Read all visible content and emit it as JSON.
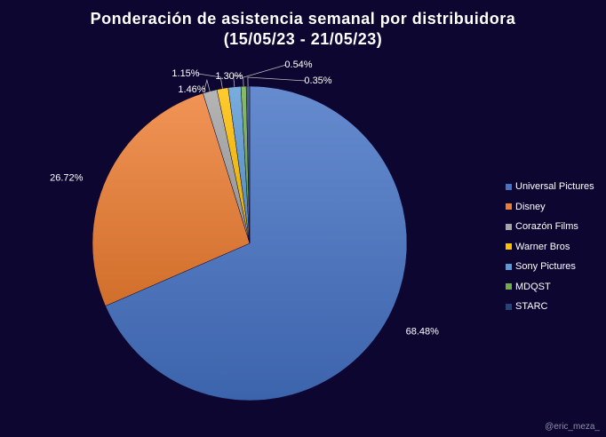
{
  "chart_data": {
    "type": "pie",
    "title": "Ponderación de asistencia semanal por distribuidora",
    "subtitle": "(15/05/23 - 21/05/23)",
    "categories": [
      "Universal Pictures",
      "Disney",
      "Corazón Films",
      "Warner Bros",
      "Sony Pictures",
      "MDQST",
      "STARC"
    ],
    "values": [
      68.48,
      26.72,
      1.46,
      1.15,
      1.3,
      0.54,
      0.35
    ],
    "labels": [
      "68.48%",
      "26.72%",
      "1.46%",
      "1.15%",
      "1.30%",
      "0.54%",
      "0.35%"
    ],
    "colors": [
      "#4472c4",
      "#ed7d31",
      "#a5a5a5",
      "#ffc000",
      "#5b9bd5",
      "#70ad47",
      "#264478"
    ],
    "legend_position": "right"
  },
  "watermark": "@eric_meza_"
}
